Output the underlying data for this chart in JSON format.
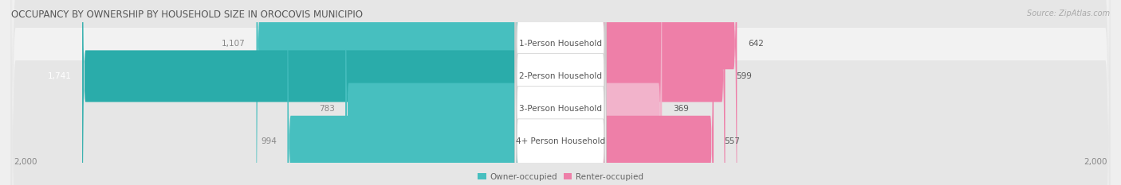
{
  "title": "OCCUPANCY BY OWNERSHIP BY HOUSEHOLD SIZE IN OROCOVIS MUNICIPIO",
  "source": "Source: ZipAtlas.com",
  "categories": [
    "1-Person Household",
    "2-Person Household",
    "3-Person Household",
    "4+ Person Household"
  ],
  "owner_values": [
    1107,
    1741,
    783,
    994
  ],
  "renter_values": [
    642,
    599,
    369,
    557
  ],
  "renter_colors": [
    "#EE7FA8",
    "#EE7FA8",
    "#F2B3CB",
    "#EE7FA8"
  ],
  "owner_colors": [
    "#47BFBF",
    "#2AACAA",
    "#47BFBF",
    "#47BFBF"
  ],
  "max_scale": 2000,
  "owner_label_colors": [
    "#888888",
    "#FFFFFF",
    "#888888",
    "#888888"
  ],
  "row_bg_colors": [
    "#F2F2F2",
    "#E6E6E6",
    "#F2F2F2",
    "#E6E6E6"
  ],
  "title_fontsize": 8.5,
  "label_fontsize": 7.5,
  "value_fontsize": 7.5,
  "tick_fontsize": 7.5,
  "source_fontsize": 7,
  "legend_fontsize": 7.5,
  "figsize": [
    14.06,
    2.33
  ],
  "dpi": 100
}
